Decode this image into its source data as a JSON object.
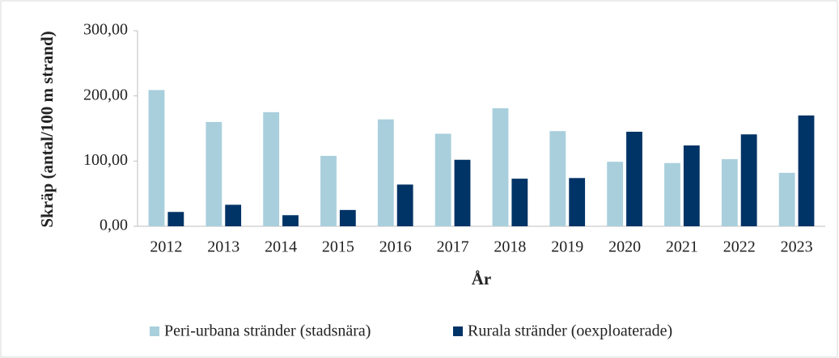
{
  "chart_data": {
    "type": "bar",
    "xlabel": "År",
    "ylabel": "Skräp (antal/100 m strand)",
    "categories": [
      "2012",
      "2013",
      "2014",
      "2015",
      "2016",
      "2017",
      "2018",
      "2019",
      "2020",
      "2021",
      "2022",
      "2023"
    ],
    "series": [
      {
        "name": "Peri-urbana stränder (stadsnära)",
        "color": "#a9cfdc",
        "values": [
          209,
          160,
          175,
          108,
          164,
          142,
          181,
          146,
          99,
          97,
          103,
          82
        ]
      },
      {
        "name": "Rurala stränder (oexploaterade)",
        "color": "#003366",
        "values": [
          22,
          33,
          17,
          25,
          64,
          102,
          73,
          74,
          145,
          124,
          141,
          170
        ]
      }
    ],
    "ylim": [
      0,
      300
    ],
    "yticks": [
      {
        "value": 0,
        "label": "0,00"
      },
      {
        "value": 100,
        "label": "100,00"
      },
      {
        "value": 200,
        "label": "200,00"
      },
      {
        "value": 300,
        "label": "300,00"
      }
    ],
    "legend": "bottom"
  }
}
